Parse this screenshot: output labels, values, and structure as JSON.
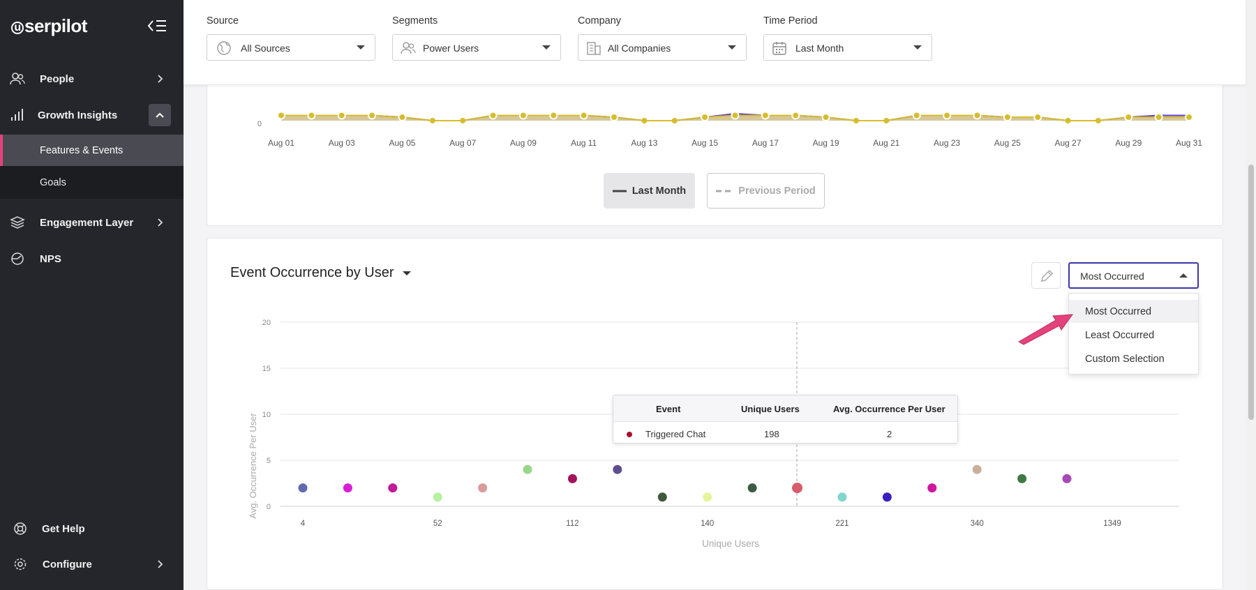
{
  "sidebar": {
    "brand": "serpilot",
    "brand_letter": "u",
    "nav": {
      "people": "People",
      "growth": "Growth Insights",
      "features": "Features & Events",
      "goals": "Goals",
      "engagement": "Engagement Layer",
      "nps": "NPS",
      "help": "Get Help",
      "configure": "Configure"
    }
  },
  "filters": {
    "source": {
      "label": "Source",
      "value": "All Sources"
    },
    "segments": {
      "label": "Segments",
      "value": "Power Users"
    },
    "company": {
      "label": "Company",
      "value": "All Companies"
    },
    "period": {
      "label": "Time Period",
      "value": "Last Month"
    }
  },
  "trend_chart": {
    "y_tick": "0",
    "x_ticks": [
      "Aug 01",
      "Aug 03",
      "Aug 05",
      "Aug 07",
      "Aug 09",
      "Aug 11",
      "Aug 13",
      "Aug 15",
      "Aug 17",
      "Aug 19",
      "Aug 21",
      "Aug 23",
      "Aug 25",
      "Aug 27",
      "Aug 29",
      "Aug 31"
    ],
    "legend": {
      "current": "Last Month",
      "previous": "Previous Period"
    }
  },
  "occurrence": {
    "title": "Event Occurrence by User",
    "sort": {
      "selected": "Most Occurred",
      "options": [
        "Most Occurred",
        "Least Occurred",
        "Custom Selection"
      ]
    },
    "tooltip": {
      "headers": {
        "event": "Event",
        "users": "Unique Users",
        "avg": "Avg. Occurrence Per User"
      },
      "row": {
        "event": "Triggered Chat",
        "users": "198",
        "avg": "2"
      }
    }
  },
  "chart_data": [
    {
      "type": "line",
      "x": [
        "Aug 01",
        "Aug 02",
        "Aug 03",
        "Aug 04",
        "Aug 05",
        "Aug 06",
        "Aug 07",
        "Aug 08",
        "Aug 09",
        "Aug 10",
        "Aug 11",
        "Aug 12",
        "Aug 13",
        "Aug 14",
        "Aug 15",
        "Aug 16",
        "Aug 17",
        "Aug 18",
        "Aug 19",
        "Aug 20",
        "Aug 21",
        "Aug 22",
        "Aug 23",
        "Aug 24",
        "Aug 25",
        "Aug 26",
        "Aug 27",
        "Aug 28",
        "Aug 29",
        "Aug 30",
        "Aug 31"
      ],
      "series": [
        {
          "name": "Last Month",
          "color": "#5b3fc4",
          "values": [
            3,
            3,
            3,
            3,
            2,
            0,
            0,
            3,
            3,
            3,
            3,
            2,
            0,
            0,
            2,
            4,
            3,
            3,
            2,
            0,
            0,
            3,
            3,
            3,
            2,
            2,
            0,
            0,
            2,
            3,
            3
          ]
        },
        {
          "name": "Previous Period",
          "color": "#d6bd2e",
          "values": [
            3,
            3,
            3,
            3,
            2,
            0,
            0,
            3,
            3,
            3,
            3,
            2,
            0,
            0,
            2,
            3,
            3,
            3,
            2,
            0,
            0,
            3,
            3,
            3,
            2,
            2,
            0,
            0,
            2,
            2,
            2
          ]
        }
      ],
      "ylim": [
        0,
        20
      ],
      "yticks": [
        0
      ]
    },
    {
      "type": "scatter",
      "title": "Event Occurrence by User",
      "xlabel": "Unique Users",
      "ylabel": "Avg. Occurrence Per User",
      "x_ticks": [
        "4",
        "52",
        "112",
        "140",
        "221",
        "340",
        "1349"
      ],
      "yticks": [
        0,
        5,
        10,
        15,
        20
      ],
      "ylim": [
        0,
        20
      ],
      "points": [
        {
          "y": 2,
          "color": "#5f6ab0"
        },
        {
          "y": 2,
          "color": "#d81ed8"
        },
        {
          "y": 2,
          "color": "#c21a9b"
        },
        {
          "y": 1,
          "color": "#b7f0a2"
        },
        {
          "y": 2,
          "color": "#d99a9a"
        },
        {
          "y": 4,
          "color": "#9ad68a"
        },
        {
          "y": 3,
          "color": "#a3125a"
        },
        {
          "y": 4,
          "color": "#5e4d8f"
        },
        {
          "y": 1,
          "color": "#3f5a3c"
        },
        {
          "y": 1,
          "color": "#e4f59a"
        },
        {
          "y": 2,
          "color": "#3d5a45"
        },
        {
          "y": 2,
          "color": "#d95a6a"
        },
        {
          "y": 1,
          "color": "#7fd6cc"
        },
        {
          "y": 1,
          "color": "#3a1fc0"
        },
        {
          "y": 2,
          "color": "#d0169f"
        },
        {
          "y": 4,
          "color": "#c9b09a"
        },
        {
          "y": 3,
          "color": "#3f7a45"
        },
        {
          "y": 3,
          "color": "#a54bb8"
        }
      ]
    }
  ]
}
